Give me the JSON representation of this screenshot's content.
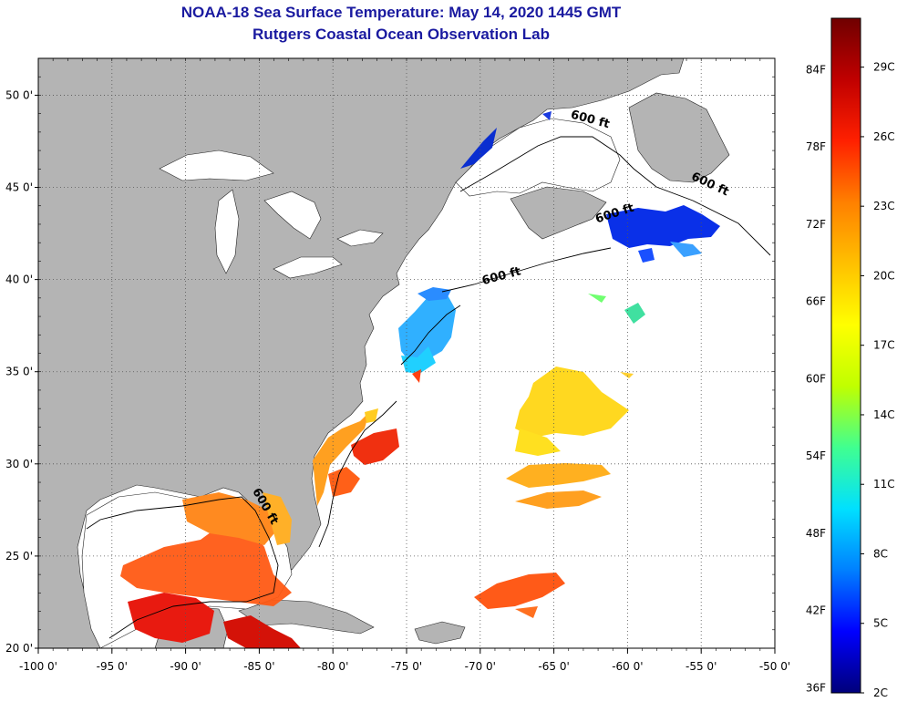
{
  "title": "NOAA-18 Sea Surface Temperature:  May 14, 2020 1445 GMT",
  "subtitle": "Rutgers Coastal Ocean Observation Lab",
  "colors": {
    "land": "#b4b4b4",
    "title": "#1a1aa0",
    "gradient": [
      "#00007a",
      "#0000ff",
      "#0080ff",
      "#00e0ff",
      "#40ff90",
      "#c0ff00",
      "#ffff00",
      "#ffc000",
      "#ff8000",
      "#ff2000",
      "#c00000",
      "#700000"
    ]
  },
  "map": {
    "lon_range": [
      -100,
      -50
    ],
    "lat_range": [
      20,
      52
    ],
    "lon_ticks": [
      {
        "value": -100,
        "label": "-100 0'"
      },
      {
        "value": -95,
        "label": "-95 0'"
      },
      {
        "value": -90,
        "label": "-90 0'"
      },
      {
        "value": -85,
        "label": "-85 0'"
      },
      {
        "value": -80,
        "label": "-80 0'"
      },
      {
        "value": -75,
        "label": "-75 0'"
      },
      {
        "value": -70,
        "label": "-70 0'"
      },
      {
        "value": -65,
        "label": "-65 0'"
      },
      {
        "value": -60,
        "label": "-60 0'"
      },
      {
        "value": -55,
        "label": "-55 0'"
      },
      {
        "value": -50,
        "label": "-50 0'"
      }
    ],
    "lat_ticks": [
      {
        "value": 50,
        "label": "50 0'"
      },
      {
        "value": 45,
        "label": "45 0'"
      },
      {
        "value": 40,
        "label": "40 0'"
      },
      {
        "value": 35,
        "label": "35 0'"
      },
      {
        "value": 30,
        "label": "30 0'"
      },
      {
        "value": 25,
        "label": "25 0'"
      },
      {
        "value": 20,
        "label": "20 0'"
      }
    ],
    "contour_labels": [
      {
        "text": "600 ft",
        "lon": -62.6,
        "lat": 48.5,
        "rotate": 15
      },
      {
        "text": "600 ft",
        "lon": -54.5,
        "lat": 45.0,
        "rotate": 25
      },
      {
        "text": "600 ft",
        "lon": -60.8,
        "lat": 43.4,
        "rotate": -18
      },
      {
        "text": "600 ft",
        "lon": -68.5,
        "lat": 40.0,
        "rotate": -15
      },
      {
        "text": "600 ft",
        "lon": -84.8,
        "lat": 27.6,
        "rotate": 60
      }
    ]
  },
  "colorbar": {
    "f_labels": [
      {
        "label": "84F",
        "value": 84
      },
      {
        "label": "78F",
        "value": 78
      },
      {
        "label": "72F",
        "value": 72
      },
      {
        "label": "66F",
        "value": 66
      },
      {
        "label": "60F",
        "value": 60
      },
      {
        "label": "54F",
        "value": 54
      },
      {
        "label": "48F",
        "value": 48
      },
      {
        "label": "42F",
        "value": 42
      },
      {
        "label": "36F",
        "value": 36
      }
    ],
    "c_labels": [
      {
        "label": "29C",
        "value": 29
      },
      {
        "label": "26C",
        "value": 26
      },
      {
        "label": "23C",
        "value": 23
      },
      {
        "label": "20C",
        "value": 20
      },
      {
        "label": "17C",
        "value": 17
      },
      {
        "label": "14C",
        "value": 14
      },
      {
        "label": "11C",
        "value": 11
      },
      {
        "label": "8C",
        "value": 8
      },
      {
        "label": "5C",
        "value": 5
      },
      {
        "label": "2C",
        "value": 2
      }
    ]
  }
}
